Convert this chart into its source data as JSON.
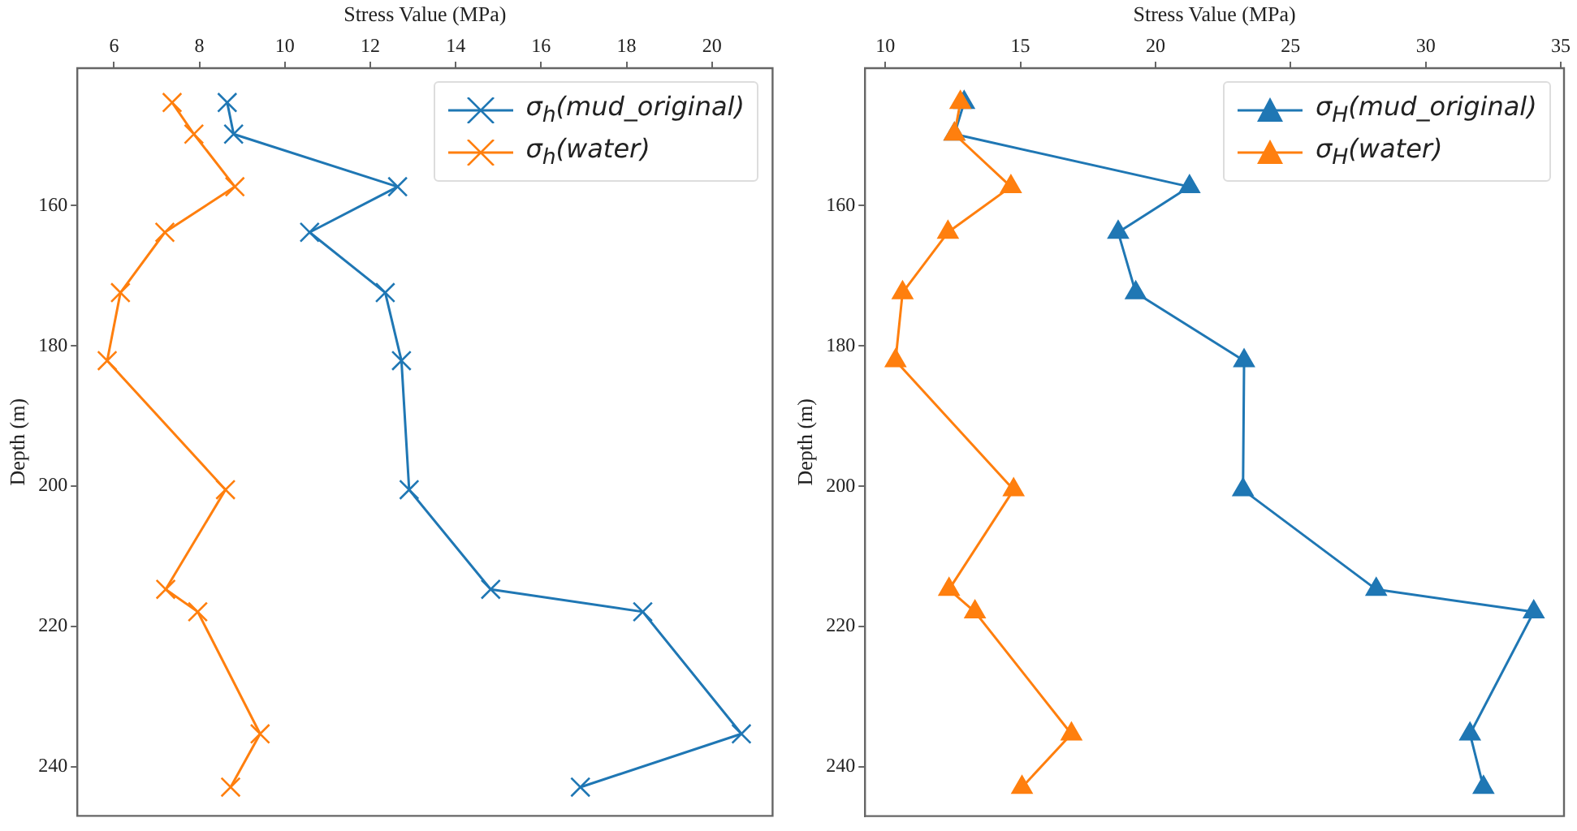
{
  "chart_data": [
    {
      "type": "line",
      "xlabel": "Stress Value (MPa)",
      "ylabel": "Depth (m)",
      "xlim": [
        5.14,
        21.42
      ],
      "xticks": [
        6,
        8,
        10,
        12,
        14,
        16,
        18,
        20
      ],
      "ylim": [
        247,
        140.4
      ],
      "yticks": [
        160,
        180,
        200,
        220,
        240
      ],
      "legend": "top right",
      "marker": "cross",
      "series": [
        {
          "name": "σ$_{h}$(mud_original)",
          "color": "#1f77b4",
          "x": [
            8.65,
            8.8,
            12.64,
            10.58,
            12.35,
            12.73,
            12.91,
            14.82,
            18.38,
            20.69,
            16.92
          ],
          "values": [
            145.3,
            149.8,
            157.3,
            163.8,
            172.4,
            182.1,
            200.5,
            214.7,
            217.9,
            235.3,
            242.9
          ]
        },
        {
          "name": "σ$_{h}$(water)",
          "color": "#ff7f0e",
          "x": [
            7.36,
            7.87,
            8.83,
            7.19,
            6.15,
            5.84,
            8.61,
            7.21,
            7.96,
            9.42,
            8.73
          ],
          "values": [
            145.3,
            149.8,
            157.3,
            163.8,
            172.4,
            182.1,
            200.5,
            214.7,
            217.9,
            235.3,
            242.9
          ]
        }
      ]
    },
    {
      "type": "line",
      "xlabel": "Stress Value (MPa)",
      "ylabel": "Depth (m)",
      "xlim": [
        9.25,
        35.12
      ],
      "xticks": [
        10,
        15,
        20,
        25,
        30,
        35
      ],
      "ylim": [
        247,
        140.4
      ],
      "yticks": [
        160,
        180,
        200,
        220,
        240
      ],
      "legend": "top right",
      "marker": "triangle",
      "series": [
        {
          "name": "σ$_{H}$(mud_original)",
          "color": "#1f77b4",
          "x": [
            12.92,
            12.56,
            21.26,
            18.62,
            19.27,
            23.28,
            23.24,
            28.17,
            34.0,
            31.64,
            32.14
          ],
          "values": [
            145.3,
            149.8,
            157.3,
            163.8,
            172.4,
            182.1,
            200.5,
            214.7,
            217.9,
            235.3,
            242.9
          ]
        },
        {
          "name": "σ$_{H}$(water)",
          "color": "#ff7f0e",
          "x": [
            12.78,
            12.56,
            14.65,
            12.32,
            10.64,
            10.38,
            14.75,
            12.36,
            13.32,
            16.89,
            15.06
          ],
          "values": [
            145.3,
            149.8,
            157.3,
            163.8,
            172.4,
            182.1,
            200.5,
            214.7,
            217.9,
            235.3,
            242.9
          ]
        }
      ]
    }
  ]
}
